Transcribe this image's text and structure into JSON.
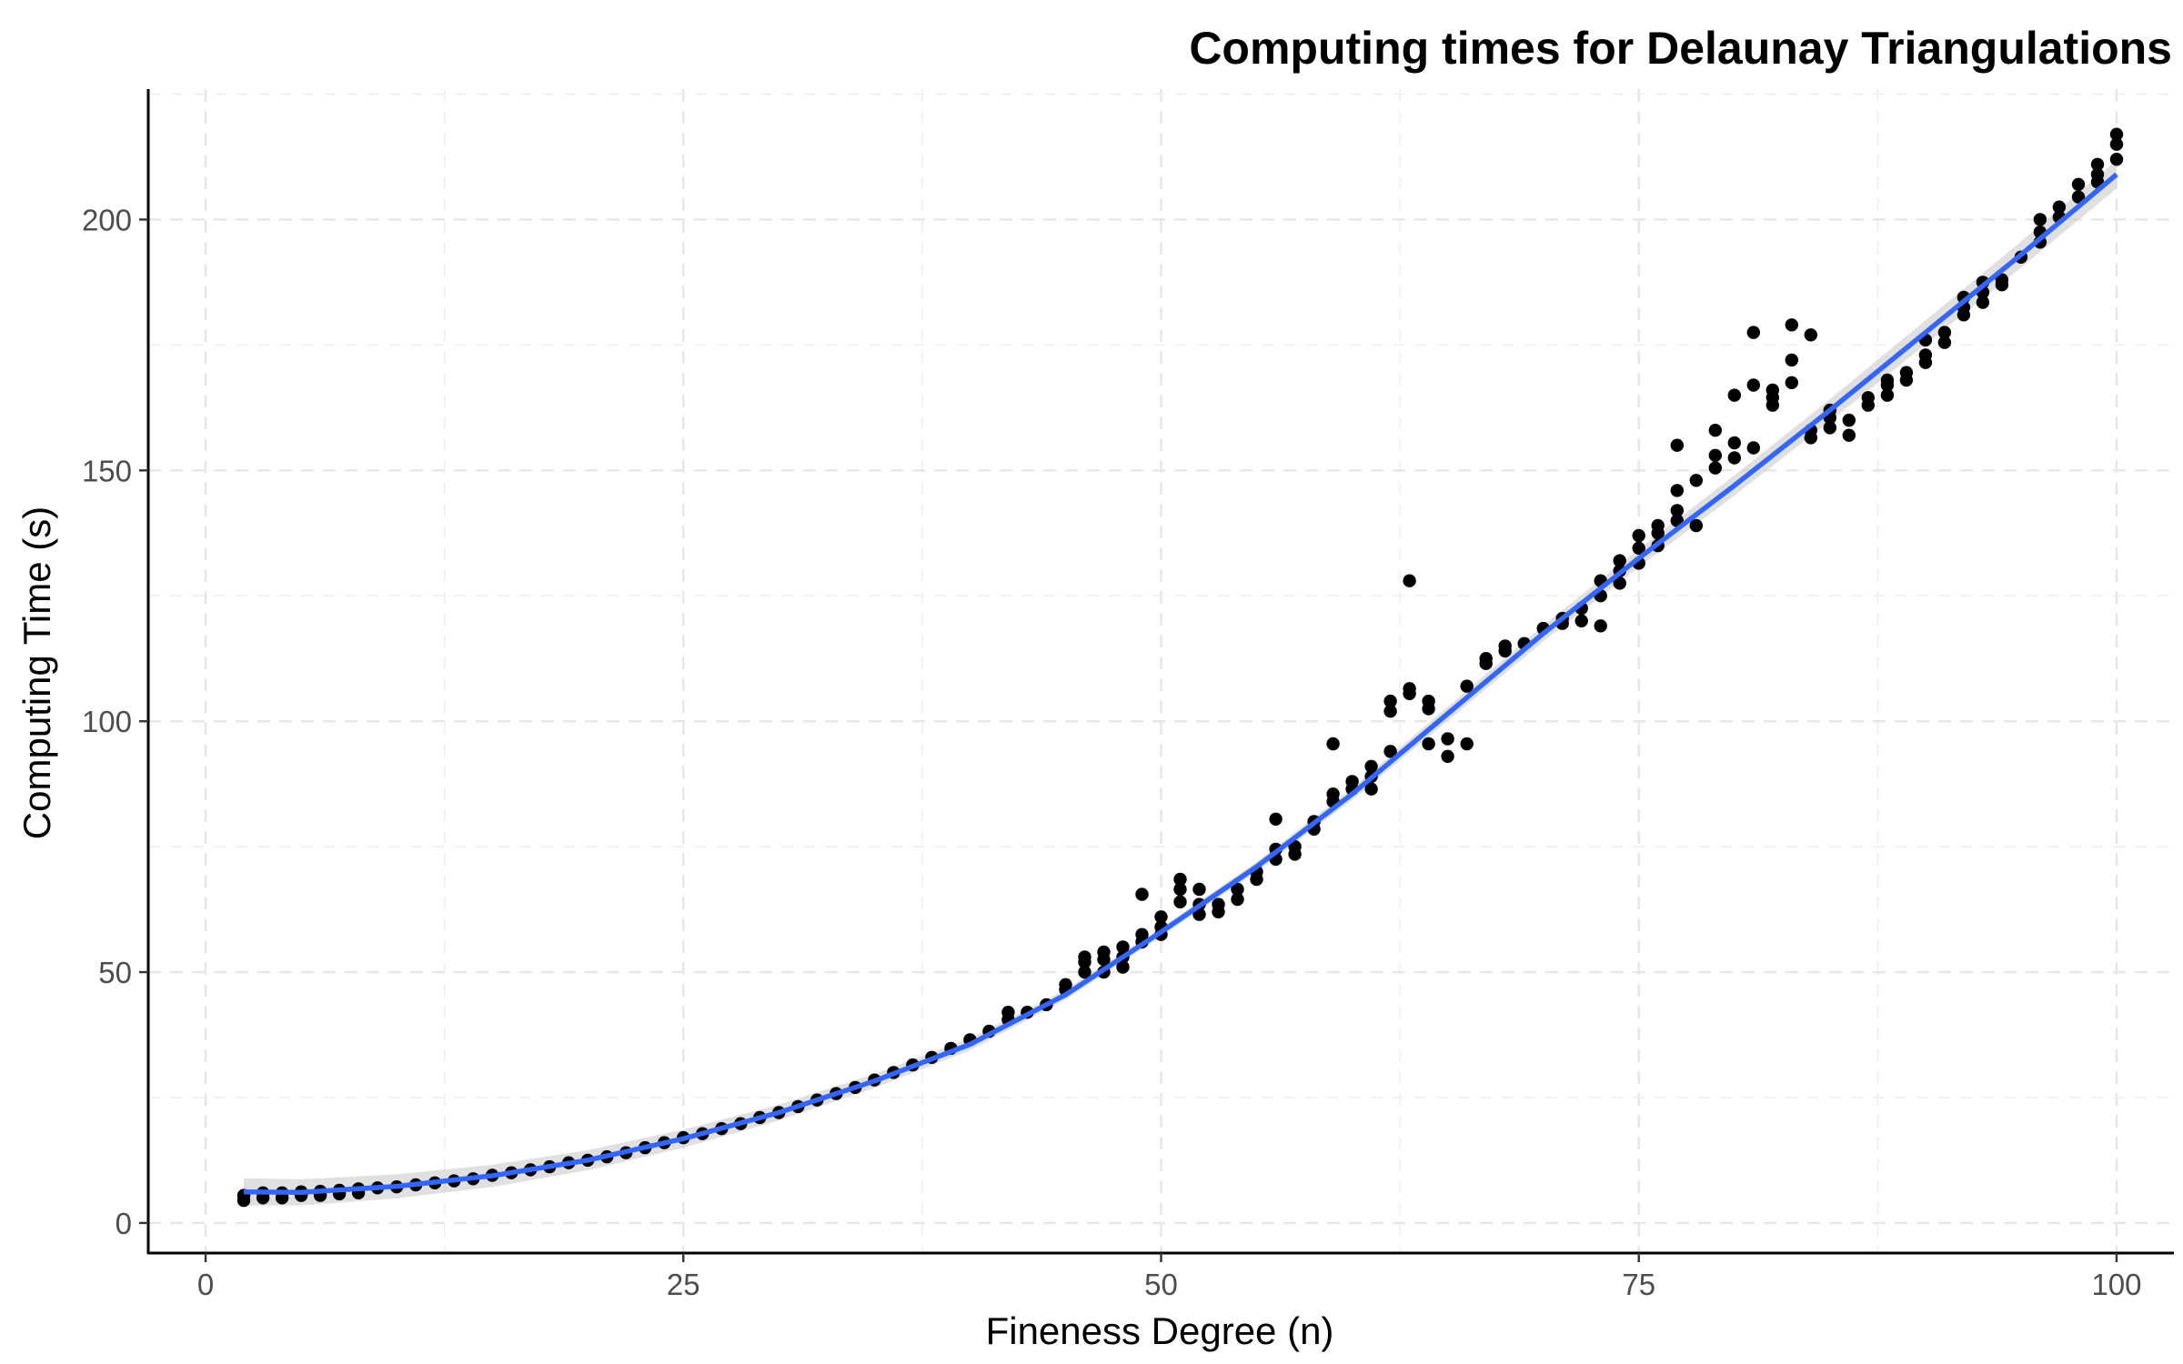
{
  "chart_data": {
    "type": "scatter",
    "title": "Computing times for Delaunay Triangulations",
    "xlabel": "Fineness Degree (n)",
    "ylabel": "Computing Time (s)",
    "xlim": [
      -3,
      103
    ],
    "ylim": [
      -6,
      226
    ],
    "x_ticks": [
      0,
      25,
      50,
      75,
      100
    ],
    "x_tick_labels": [
      "0",
      "25",
      "50",
      "75",
      "100"
    ],
    "y_ticks": [
      0,
      50,
      100,
      150,
      200
    ],
    "y_tick_labels": [
      "0",
      "50",
      "100",
      "150",
      "200"
    ],
    "grid": true,
    "grid_style": "dashed",
    "legend": "none",
    "point_color": "#000000",
    "fit_color": "#3366ff",
    "ribbon_color": "#cccccc",
    "series": [
      {
        "type": "scatter",
        "points": [
          [
            2,
            4.5
          ],
          [
            2,
            5.5
          ],
          [
            3,
            5
          ],
          [
            3,
            6
          ],
          [
            4,
            5
          ],
          [
            4,
            6
          ],
          [
            5,
            5.5
          ],
          [
            5,
            6.2
          ],
          [
            6,
            5.5
          ],
          [
            6,
            6.3
          ],
          [
            7,
            5.8
          ],
          [
            7,
            6.5
          ],
          [
            8,
            6
          ],
          [
            8,
            6.8
          ],
          [
            9,
            7
          ],
          [
            10,
            7.2
          ],
          [
            11,
            7.6
          ],
          [
            12,
            8
          ],
          [
            13,
            8.4
          ],
          [
            14,
            8.8
          ],
          [
            15,
            9.5
          ],
          [
            16,
            10
          ],
          [
            17,
            10.6
          ],
          [
            18,
            11.2
          ],
          [
            19,
            12
          ],
          [
            20,
            12.5
          ],
          [
            21,
            13.2
          ],
          [
            22,
            14
          ],
          [
            23,
            15
          ],
          [
            24,
            16
          ],
          [
            25,
            17
          ],
          [
            26,
            17.8
          ],
          [
            27,
            18.8
          ],
          [
            28,
            19.8
          ],
          [
            29,
            21
          ],
          [
            30,
            22
          ],
          [
            31,
            23.2
          ],
          [
            32,
            24.5
          ],
          [
            33,
            25.8
          ],
          [
            34,
            27
          ],
          [
            35,
            28.5
          ],
          [
            36,
            30
          ],
          [
            37,
            31.5
          ],
          [
            38,
            33
          ],
          [
            39,
            34.8
          ],
          [
            40,
            36.5
          ],
          [
            41,
            38.2
          ],
          [
            42,
            40.5
          ],
          [
            42,
            42
          ],
          [
            43,
            42
          ],
          [
            44,
            43.5
          ],
          [
            45,
            46.5
          ],
          [
            45,
            47.5
          ],
          [
            46,
            50
          ],
          [
            46,
            52
          ],
          [
            46,
            53
          ],
          [
            47,
            50
          ],
          [
            47,
            52.5
          ],
          [
            47,
            54
          ],
          [
            48,
            51
          ],
          [
            48,
            53
          ],
          [
            48,
            55
          ],
          [
            49,
            56
          ],
          [
            49,
            57.5
          ],
          [
            49,
            65.5
          ],
          [
            50,
            57.5
          ],
          [
            50,
            59
          ],
          [
            50,
            61
          ],
          [
            51,
            64
          ],
          [
            51,
            66.5
          ],
          [
            51,
            68.5
          ],
          [
            52,
            61.5
          ],
          [
            52,
            63.5
          ],
          [
            52,
            66.5
          ],
          [
            53,
            62
          ],
          [
            53,
            63.5
          ],
          [
            54,
            64.5
          ],
          [
            54,
            66.5
          ],
          [
            55,
            68.5
          ],
          [
            55,
            70
          ],
          [
            56,
            72.5
          ],
          [
            56,
            74.5
          ],
          [
            56,
            80.5
          ],
          [
            57,
            73.5
          ],
          [
            57,
            75
          ],
          [
            58,
            78.5
          ],
          [
            58,
            80
          ],
          [
            59,
            84
          ],
          [
            59,
            85.5
          ],
          [
            59,
            95.5
          ],
          [
            60,
            86.5
          ],
          [
            60,
            88
          ],
          [
            61,
            86.5
          ],
          [
            61,
            89
          ],
          [
            61,
            91
          ],
          [
            62,
            94
          ],
          [
            62,
            102
          ],
          [
            62,
            104
          ],
          [
            63,
            105.5
          ],
          [
            63,
            106.5
          ],
          [
            63,
            128
          ],
          [
            64,
            95.5
          ],
          [
            64,
            102.5
          ],
          [
            64,
            104
          ],
          [
            65,
            93
          ],
          [
            65,
            96.5
          ],
          [
            66,
            95.5
          ],
          [
            66,
            107
          ],
          [
            67,
            111.5
          ],
          [
            67,
            112.5
          ],
          [
            68,
            114
          ],
          [
            68,
            115
          ],
          [
            69,
            115.5
          ],
          [
            70,
            118.5
          ],
          [
            71,
            119.5
          ],
          [
            71,
            120.5
          ],
          [
            72,
            120
          ],
          [
            72,
            122.5
          ],
          [
            73,
            119
          ],
          [
            73,
            125
          ],
          [
            73,
            128
          ],
          [
            74,
            127.5
          ],
          [
            74,
            130
          ],
          [
            74,
            132
          ],
          [
            75,
            131.5
          ],
          [
            75,
            134.5
          ],
          [
            75,
            137
          ],
          [
            76,
            135
          ],
          [
            76,
            137.5
          ],
          [
            76,
            139
          ],
          [
            77,
            140
          ],
          [
            77,
            142
          ],
          [
            77,
            146
          ],
          [
            77,
            155
          ],
          [
            78,
            139
          ],
          [
            78,
            148
          ],
          [
            79,
            150.5
          ],
          [
            79,
            153
          ],
          [
            79,
            158
          ],
          [
            80,
            152.5
          ],
          [
            80,
            155.5
          ],
          [
            80,
            165
          ],
          [
            81,
            154.5
          ],
          [
            81,
            167
          ],
          [
            81,
            177.5
          ],
          [
            82,
            163
          ],
          [
            82,
            164.5
          ],
          [
            82,
            166
          ],
          [
            83,
            167.5
          ],
          [
            83,
            172
          ],
          [
            83,
            179
          ],
          [
            84,
            156.5
          ],
          [
            84,
            158
          ],
          [
            84,
            177
          ],
          [
            85,
            158.5
          ],
          [
            85,
            160.5
          ],
          [
            85,
            162
          ],
          [
            86,
            157
          ],
          [
            86,
            160
          ],
          [
            87,
            163
          ],
          [
            87,
            164.5
          ],
          [
            88,
            165
          ],
          [
            88,
            167
          ],
          [
            88,
            168
          ],
          [
            89,
            168
          ],
          [
            89,
            169.5
          ],
          [
            90,
            171.5
          ],
          [
            90,
            173
          ],
          [
            90,
            176
          ],
          [
            91,
            175.5
          ],
          [
            91,
            177.5
          ],
          [
            92,
            181
          ],
          [
            92,
            182.5
          ],
          [
            92,
            184.5
          ],
          [
            93,
            183.5
          ],
          [
            93,
            185.5
          ],
          [
            93,
            187.5
          ],
          [
            94,
            187
          ],
          [
            94,
            188
          ],
          [
            95,
            192.5
          ],
          [
            96,
            195.5
          ],
          [
            96,
            197.5
          ],
          [
            96,
            200
          ],
          [
            97,
            200.5
          ],
          [
            97,
            202.5
          ],
          [
            98,
            204.5
          ],
          [
            98,
            207
          ],
          [
            99,
            207.5
          ],
          [
            99,
            209
          ],
          [
            99,
            211
          ],
          [
            100,
            212
          ],
          [
            100,
            215
          ],
          [
            100,
            217
          ]
        ]
      },
      {
        "type": "line",
        "method": "smooth fit",
        "x": [
          2,
          5,
          10,
          15,
          20,
          25,
          30,
          35,
          40,
          45,
          50,
          55,
          60,
          65,
          70,
          75,
          80,
          85,
          90,
          95,
          100
        ],
        "y": [
          6.2,
          6.1,
          7.3,
          9.4,
          12.5,
          16.8,
          22,
          28.3,
          35.6,
          45.5,
          58,
          71,
          85.5,
          101.5,
          117.5,
          132.5,
          147,
          162,
          177.5,
          193,
          209
        ]
      }
    ]
  }
}
